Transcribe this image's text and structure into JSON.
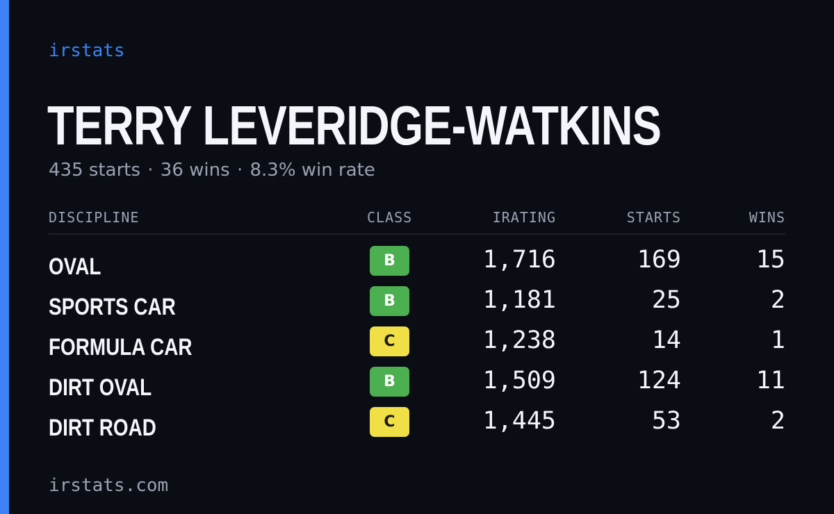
{
  "brand": "irstats",
  "driver": {
    "name": "TERRY LEVERIDGE-WATKINS",
    "starts_text": "435 starts",
    "wins_text": "36 wins",
    "win_rate_text": "8.3% win rate",
    "separator": "·"
  },
  "table": {
    "headers": {
      "discipline": "DISCIPLINE",
      "class": "CLASS",
      "irating": "IRATING",
      "starts": "STARTS",
      "wins": "WINS"
    },
    "rows": [
      {
        "discipline": "OVAL",
        "class": "B",
        "irating": "1,716",
        "starts": "169",
        "wins": "15"
      },
      {
        "discipline": "SPORTS CAR",
        "class": "B",
        "irating": "1,181",
        "starts": "25",
        "wins": "2"
      },
      {
        "discipline": "FORMULA CAR",
        "class": "C",
        "irating": "1,238",
        "starts": "14",
        "wins": "1"
      },
      {
        "discipline": "DIRT OVAL",
        "class": "B",
        "irating": "1,509",
        "starts": "124",
        "wins": "11"
      },
      {
        "discipline": "DIRT ROAD",
        "class": "C",
        "irating": "1,445",
        "starts": "53",
        "wins": "2"
      }
    ]
  },
  "footer": "irstats.com",
  "colors": {
    "background": "#0a0d14",
    "accent": "#3b82f6",
    "class_b": "#4caf50",
    "class_c": "#f0e046"
  }
}
